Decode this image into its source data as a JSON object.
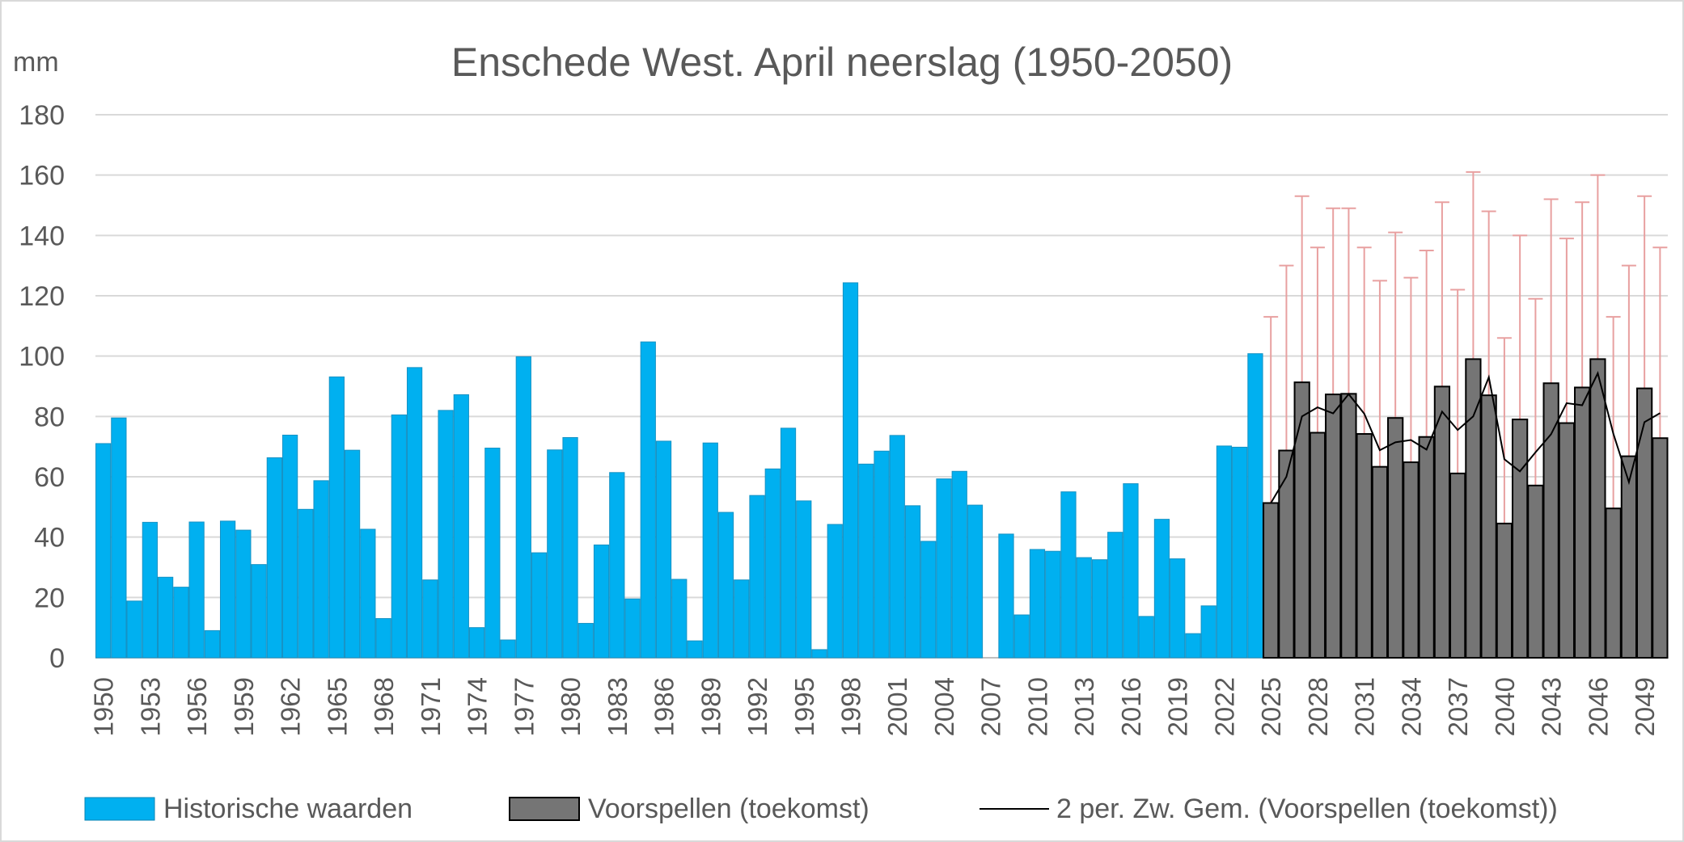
{
  "chart_data": {
    "type": "bar",
    "title": "Enschede West. April neerslag (1950-2050)",
    "ylabel": "mm",
    "xlabel": "",
    "ylim": [
      0,
      180
    ],
    "yticks": [
      0,
      20,
      40,
      60,
      80,
      100,
      120,
      140,
      160,
      180
    ],
    "grid": true,
    "legend_position": "bottom",
    "x_tick_labels": [
      "1950",
      "1953",
      "1956",
      "1959",
      "1962",
      "1965",
      "1968",
      "1971",
      "1974",
      "1977",
      "1980",
      "1983",
      "1986",
      "1989",
      "1992",
      "1995",
      "1998",
      "2001",
      "2004",
      "2007",
      "2010",
      "2013",
      "2016",
      "2019",
      "2022",
      "2025",
      "2028",
      "2031",
      "2034",
      "2037",
      "2040",
      "2043",
      "2046",
      "2049"
    ],
    "x_start": 1950,
    "x_end": 2050,
    "series": [
      {
        "name": "Historische waarden",
        "color": "#00B0F0",
        "x_start": 1950,
        "values": [
          71,
          79.5,
          18.8,
          44.9,
          26.7,
          23.4,
          45,
          9,
          45.3,
          42.3,
          30.9,
          66.3,
          73.8,
          49.2,
          58.7,
          93.1,
          68.8,
          42.6,
          13,
          80.5,
          96.2,
          25.8,
          82,
          87.2,
          10,
          69.5,
          5.9,
          99.8,
          34.8,
          68.9,
          73,
          11.4,
          37.4,
          61.4,
          19.5,
          104.7,
          71.8,
          26,
          5.6,
          71.2,
          48.2,
          25.8,
          53.8,
          62.6,
          76.1,
          52,
          2.7,
          44.2,
          124.3,
          64.2,
          68.5,
          73.7,
          50.4,
          38.6,
          59.3,
          61.8,
          50.6,
          null,
          41,
          14.2,
          35.9,
          35.3,
          55,
          33.2,
          32.5,
          41.6,
          57.7,
          13.7,
          45.9,
          32.8,
          8,
          17.2,
          70.2,
          69.8,
          100.8
        ]
      },
      {
        "name": "Voorspellen (toekomst)",
        "color": "#757575",
        "x_start": 2025,
        "values": [
          51.3,
          68.7,
          91.3,
          74.6,
          87.3,
          87.5,
          74.2,
          63.3,
          79.5,
          64.8,
          73.2,
          89.9,
          61.1,
          99,
          87,
          44.5,
          79,
          57.1,
          91,
          77.8,
          89.6,
          99,
          49.5,
          66.8,
          89.3,
          72.8
        ],
        "error_upper": [
          113,
          130,
          153,
          136,
          149,
          149,
          136,
          125,
          141,
          126,
          135,
          151,
          122,
          161,
          148,
          106,
          140,
          119,
          152,
          139,
          151,
          160,
          113,
          130,
          153,
          136
        ],
        "error_color": "#E8A0A0"
      },
      {
        "name": "2 per. Zw. Gem. (Voorspellen (toekomst))",
        "type": "line",
        "color": "#000000",
        "x_start": 2025,
        "values": [
          51.3,
          60,
          80,
          83,
          81,
          87.4,
          80.9,
          68.8,
          71.4,
          72.2,
          69,
          81.6,
          75.5,
          80,
          93,
          65.8,
          61.8,
          68.1,
          74.1,
          84.4,
          83.7,
          94.3,
          74.3,
          58.2,
          78.1,
          81.1
        ]
      }
    ]
  }
}
